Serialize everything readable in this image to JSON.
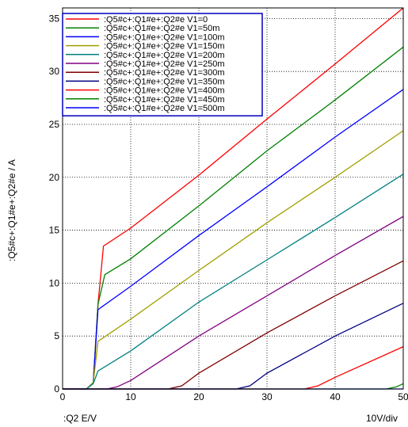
{
  "chart_data": {
    "type": "line",
    "xlabel": ":Q2  E/V",
    "ylabel": ":Q5#c+:Q1#e+:Q2#e / A",
    "scale_label": "10V/div",
    "xlim": [
      0,
      50
    ],
    "ylim": [
      0,
      36
    ],
    "xticks": [
      0,
      10,
      20,
      30,
      40,
      50
    ],
    "yticks": [
      0,
      5,
      10,
      15,
      20,
      25,
      30,
      35
    ],
    "grid": true,
    "legend_position": "top-left",
    "series": [
      {
        "name": ":Q5#c+:Q1#e+:Q2#e V1=0",
        "color": "#ff0000",
        "points": [
          [
            0,
            0
          ],
          [
            3.5,
            0
          ],
          [
            4.5,
            0.6
          ],
          [
            5.2,
            8
          ],
          [
            6,
            13.5
          ],
          [
            10,
            15.2
          ],
          [
            20,
            20.2
          ],
          [
            30,
            25.5
          ],
          [
            40,
            30.7
          ],
          [
            50,
            36
          ]
        ]
      },
      {
        "name": ":Q5#c+:Q1#e+:Q2#e V1=50m",
        "color": "#008000",
        "points": [
          [
            0,
            0
          ],
          [
            3.5,
            0
          ],
          [
            4.5,
            0.6
          ],
          [
            5.2,
            8
          ],
          [
            6.2,
            10.8
          ],
          [
            10,
            12.3
          ],
          [
            20,
            17.3
          ],
          [
            30,
            22.5
          ],
          [
            40,
            27.3
          ],
          [
            50,
            32.3
          ]
        ]
      },
      {
        "name": ":Q5#c+:Q1#e+:Q2#e V1=100m",
        "color": "#0000ff",
        "points": [
          [
            0,
            0
          ],
          [
            3.5,
            0
          ],
          [
            4.5,
            0.6
          ],
          [
            5.2,
            7.5
          ],
          [
            10,
            9.7
          ],
          [
            20,
            14.5
          ],
          [
            30,
            19.1
          ],
          [
            40,
            23.8
          ],
          [
            50,
            28.3
          ]
        ]
      },
      {
        "name": ":Q5#c+:Q1#e+:Q2#e V1=150m",
        "color": "#a0a000",
        "points": [
          [
            0,
            0
          ],
          [
            3.5,
            0
          ],
          [
            4.5,
            0.6
          ],
          [
            5.2,
            4.5
          ],
          [
            10,
            6.6
          ],
          [
            20,
            11.2
          ],
          [
            30,
            15.7
          ],
          [
            40,
            20
          ],
          [
            50,
            24.4
          ]
        ]
      },
      {
        "name": ":Q5#c+:Q1#e+:Q2#e V1=200m",
        "color": "#008080",
        "points": [
          [
            0,
            0
          ],
          [
            3.5,
            0
          ],
          [
            4.5,
            0.5
          ],
          [
            5.2,
            1.7
          ],
          [
            10,
            3.6
          ],
          [
            20,
            8.2
          ],
          [
            30,
            12.2
          ],
          [
            40,
            16.2
          ],
          [
            50,
            20.3
          ]
        ]
      },
      {
        "name": ":Q5#c+:Q1#e+:Q2#e V1=250m",
        "color": "#800080",
        "points": [
          [
            0,
            0
          ],
          [
            6.5,
            0
          ],
          [
            8,
            0.2
          ],
          [
            10,
            0.8
          ],
          [
            20,
            5
          ],
          [
            30,
            8.8
          ],
          [
            40,
            12.6
          ],
          [
            50,
            16.3
          ]
        ]
      },
      {
        "name": ":Q5#c+:Q1#e+:Q2#e V1=300m",
        "color": "#800000",
        "points": [
          [
            0,
            0
          ],
          [
            15.5,
            0
          ],
          [
            17.5,
            0.3
          ],
          [
            20,
            1.5
          ],
          [
            30,
            5.3
          ],
          [
            40,
            8.8
          ],
          [
            50,
            12.1
          ]
        ]
      },
      {
        "name": ":Q5#c+:Q1#e+:Q2#e V1=350m",
        "color": "#000080",
        "points": [
          [
            0,
            0
          ],
          [
            25.5,
            0
          ],
          [
            27.5,
            0.3
          ],
          [
            30,
            1.5
          ],
          [
            40,
            5
          ],
          [
            50,
            8.1
          ]
        ]
      },
      {
        "name": ":Q5#c+:Q1#e+:Q2#e V1=400m",
        "color": "#ff0000",
        "points": [
          [
            0,
            0
          ],
          [
            35.5,
            0
          ],
          [
            37.5,
            0.3
          ],
          [
            40,
            1.1
          ],
          [
            50,
            4
          ]
        ]
      },
      {
        "name": ":Q5#c+:Q1#e+:Q2#e V1=450m",
        "color": "#008000",
        "points": [
          [
            0,
            0
          ],
          [
            47.5,
            0
          ],
          [
            49,
            0.2
          ],
          [
            50,
            0.5
          ]
        ]
      },
      {
        "name": ":Q5#c+:Q1#e+:Q2#e V1=500m",
        "color": "#0000ff",
        "points": [
          [
            0,
            0
          ],
          [
            50,
            0
          ]
        ]
      }
    ]
  }
}
